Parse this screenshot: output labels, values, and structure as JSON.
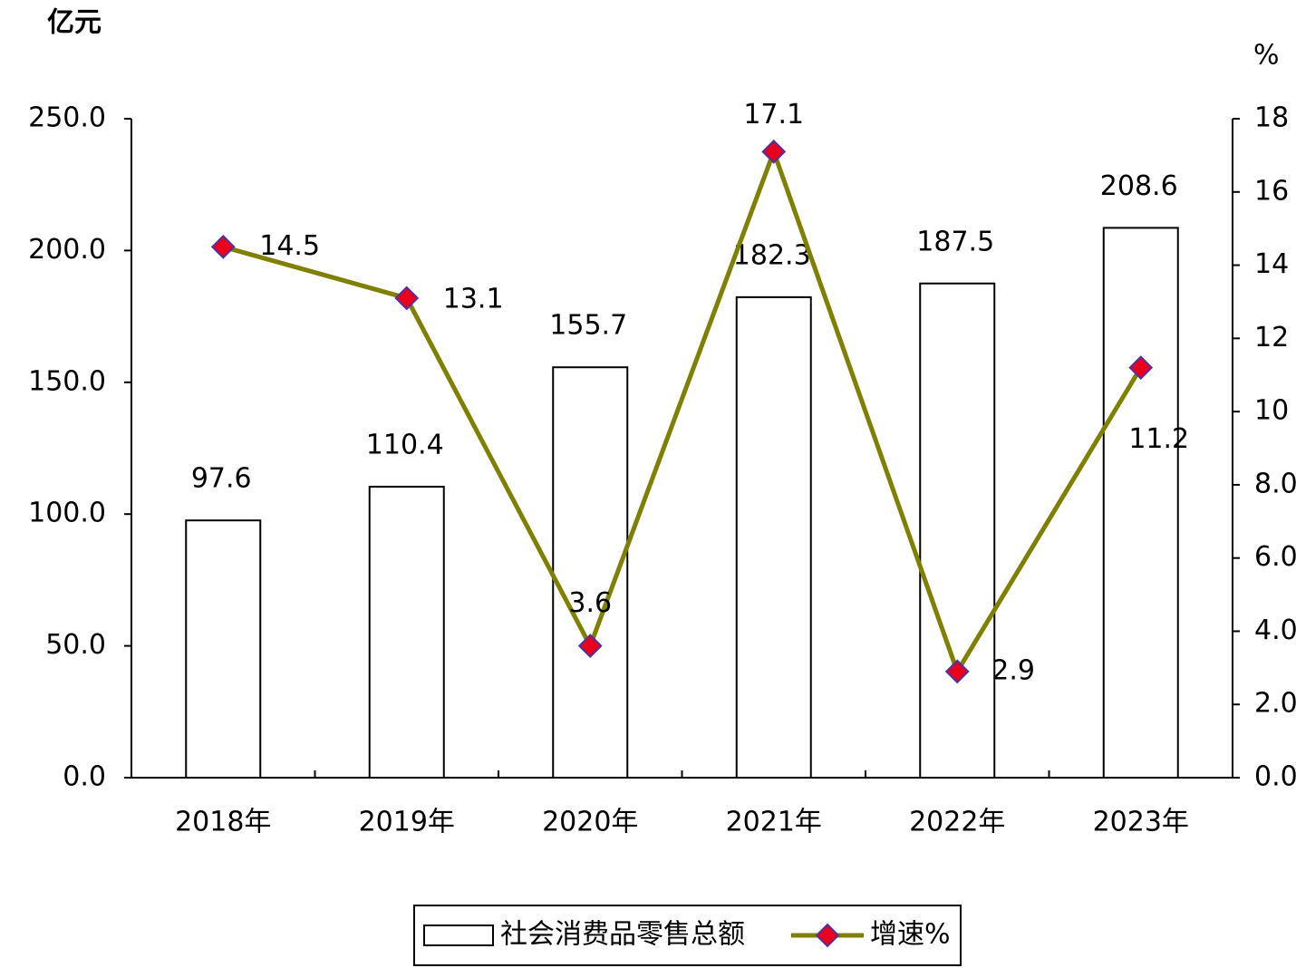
{
  "chart_data": {
    "type": "bar-line",
    "y_unit": "亿元",
    "y2_unit": "%",
    "categories": [
      "2018年",
      "2019年",
      "2020年",
      "2021年",
      "2022年",
      "2023年"
    ],
    "series": [
      {
        "name": "社会消费品零售总额",
        "type": "bar",
        "color": "#ffffff",
        "values": [
          97.6,
          110.4,
          155.7,
          182.3,
          187.5,
          208.6
        ]
      },
      {
        "name": "增速%",
        "type": "line",
        "axis": "y2",
        "color": "#808000",
        "marker_color": "#e8001c",
        "values": [
          14.5,
          13.1,
          3.6,
          17.1,
          2.9,
          11.2
        ]
      }
    ],
    "ylim": [
      0,
      250
    ],
    "yticks": [
      {
        "value": 0,
        "label": "0.0"
      },
      {
        "value": 50,
        "label": "50.0"
      },
      {
        "value": 100,
        "label": "100.0"
      },
      {
        "value": 150,
        "label": "150.0"
      },
      {
        "value": 200,
        "label": "200.0"
      },
      {
        "value": 250,
        "label": "250.0"
      }
    ],
    "y2lim": [
      0,
      18
    ],
    "y2ticks": [
      {
        "value": 0,
        "label": "0.0"
      },
      {
        "value": 2,
        "label": "2.0"
      },
      {
        "value": 4,
        "label": "4.0"
      },
      {
        "value": 6,
        "label": "6.0"
      },
      {
        "value": 8,
        "label": "8.0"
      },
      10,
      12,
      14,
      16,
      18
    ],
    "legend": "bottom"
  }
}
